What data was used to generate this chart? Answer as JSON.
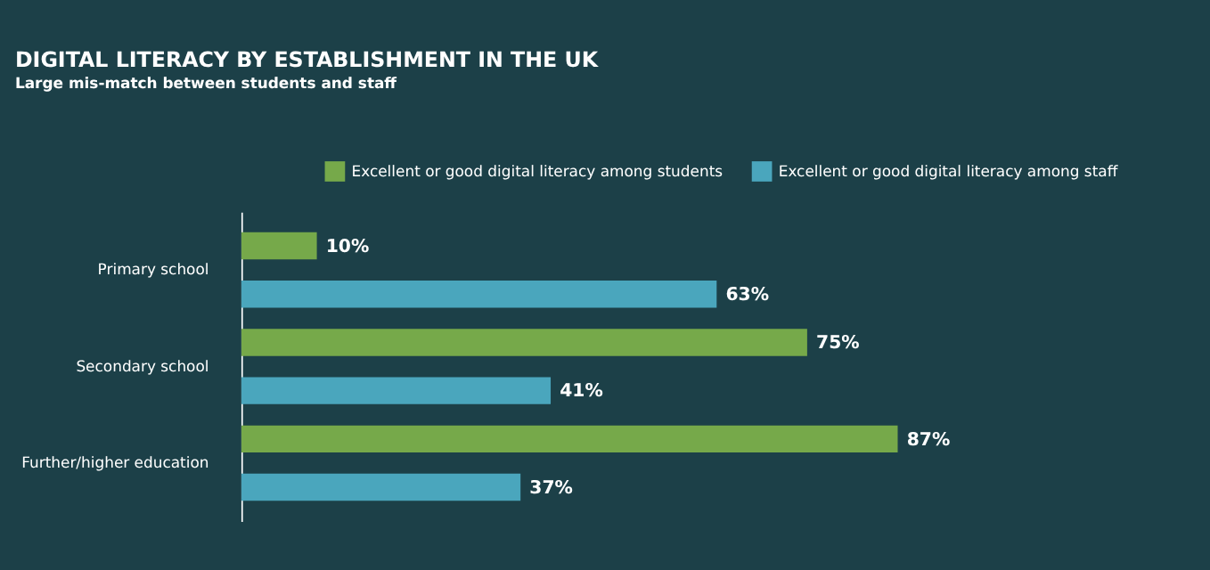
{
  "chart_data": {
    "type": "bar",
    "orientation": "horizontal",
    "title": "DIGITAL LITERACY BY ESTABLISHMENT IN THE UK",
    "subtitle": "Large mis-match between students and staff",
    "categories": [
      "Primary school",
      "Secondary school",
      "Further/higher education"
    ],
    "series": [
      {
        "name": "Excellent or good digital literacy among students",
        "color": "#76a94a",
        "values": [
          10,
          75,
          87
        ],
        "value_labels": [
          "10%",
          "75%",
          "87%"
        ]
      },
      {
        "name": "Excellent or good digital literacy among staff",
        "color": "#4aa6bd",
        "values": [
          63,
          41,
          37
        ],
        "value_labels": [
          "63%",
          "41%",
          "37%"
        ]
      }
    ],
    "legend": "top right",
    "grid": false
  }
}
